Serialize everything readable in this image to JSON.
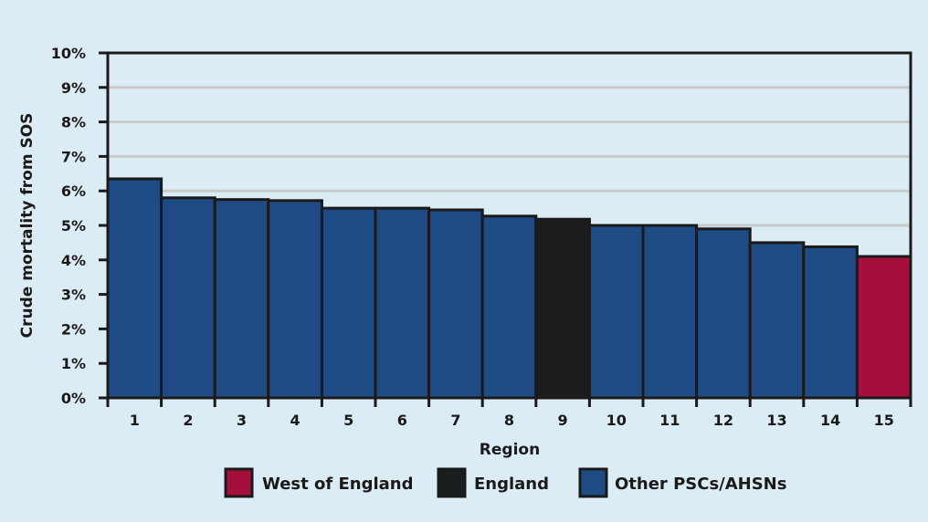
{
  "chart_data": {
    "type": "bar",
    "title": "",
    "xlabel": "Region",
    "ylabel": "Crude mortality from SOS",
    "ylim": [
      0,
      10
    ],
    "y_ticks": [
      "0%",
      "1%",
      "2%",
      "3%",
      "4%",
      "5%",
      "6%",
      "7%",
      "8%",
      "9%",
      "10%"
    ],
    "categories": [
      "1",
      "2",
      "3",
      "4",
      "5",
      "6",
      "7",
      "8",
      "9",
      "10",
      "11",
      "12",
      "13",
      "14",
      "15"
    ],
    "values": [
      6.35,
      5.8,
      5.75,
      5.72,
      5.5,
      5.5,
      5.45,
      5.27,
      5.18,
      5.0,
      5.0,
      4.9,
      4.5,
      4.38,
      4.1
    ],
    "bar_groups": [
      "other",
      "other",
      "other",
      "other",
      "other",
      "other",
      "other",
      "other",
      "england",
      "other",
      "other",
      "other",
      "other",
      "other",
      "west"
    ],
    "grid": true,
    "legend_position": "bottom",
    "legend": [
      {
        "key": "west",
        "label": "West of England",
        "color": "#a50f3c"
      },
      {
        "key": "england",
        "label": "England",
        "color": "#1b1c1e"
      },
      {
        "key": "other",
        "label": "Other PSCs/AHSNs",
        "color": "#1f4b85"
      }
    ],
    "colors": {
      "background": "#dcecf4",
      "plot_background": "#dcecf4",
      "grid": "#c7c9cb",
      "axis": "#1a1a1a",
      "bar_outline": "#1a1a1a"
    }
  }
}
